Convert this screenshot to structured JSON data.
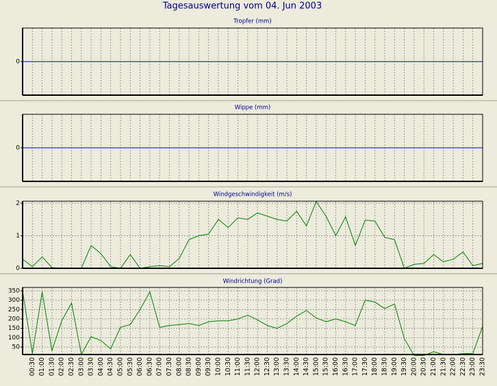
{
  "title": "Tagesauswertung vom 04. Jun 2003",
  "chart_data": [
    {
      "type": "line",
      "title": "Tropfer (mm)",
      "color": "#0000c0",
      "values": [
        0,
        0,
        0,
        0,
        0,
        0,
        0,
        0,
        0,
        0,
        0,
        0,
        0,
        0,
        0,
        0,
        0,
        0,
        0,
        0,
        0,
        0,
        0,
        0,
        0,
        0,
        0,
        0,
        0,
        0,
        0,
        0,
        0,
        0,
        0,
        0,
        0,
        0,
        0,
        0,
        0,
        0,
        0,
        0,
        0,
        0,
        0,
        0
      ],
      "ylim": [
        -1,
        1
      ],
      "yticks": [
        0
      ],
      "grid": true
    },
    {
      "type": "line",
      "title": "Wippe (mm)",
      "color": "#0000c0",
      "values": [
        0,
        0,
        0,
        0,
        0,
        0,
        0,
        0,
        0,
        0,
        0,
        0,
        0,
        0,
        0,
        0,
        0,
        0,
        0,
        0,
        0,
        0,
        0,
        0,
        0,
        0,
        0,
        0,
        0,
        0,
        0,
        0,
        0,
        0,
        0,
        0,
        0,
        0,
        0,
        0,
        0,
        0,
        0,
        0,
        0,
        0,
        0,
        0
      ],
      "ylim": [
        -1,
        1
      ],
      "yticks": [
        0
      ],
      "grid": true
    },
    {
      "type": "line",
      "title": "Windgeschwindigkeit (m/s)",
      "color": "#008000",
      "values": [
        0.28,
        0.05,
        0.35,
        0.02,
        0,
        0,
        0,
        0.7,
        0.45,
        0.05,
        0,
        0.42,
        0,
        0.05,
        0.08,
        0.05,
        0.3,
        0.88,
        1.0,
        1.05,
        1.5,
        1.25,
        1.55,
        1.5,
        1.7,
        1.6,
        1.5,
        1.45,
        1.75,
        1.3,
        2.05,
        1.6,
        1.0,
        1.58,
        0.7,
        1.48,
        1.45,
        0.95,
        0.88,
        0,
        0.12,
        0.15,
        0.42,
        0.2,
        0.28,
        0.5,
        0.08,
        0.15
      ],
      "ylim": [
        0,
        2.06
      ],
      "yticks": [
        0,
        1,
        2
      ],
      "grid": true
    },
    {
      "type": "line",
      "title": "Windrichtung (Grad)",
      "color": "#008000",
      "categories": [
        null,
        "00:30",
        "01:00",
        "01:30",
        "02:00",
        "02:30",
        "03:00",
        "03:30",
        "04:00",
        "04:30",
        "05:00",
        "05:30",
        "06:00",
        "06:30",
        "07:00",
        "07:30",
        "08:00",
        "08:30",
        "09:00",
        "09:30",
        "10:00",
        "10:30",
        "11:00",
        "11:30",
        "12:00",
        "12:30",
        "13:00",
        "13:30",
        "14:00",
        "14:30",
        "15:00",
        "15:30",
        "16:00",
        "16:30",
        "17:00",
        "17:30",
        "18:00",
        "18:30",
        "19:00",
        "19:30",
        "20:00",
        "20:30",
        "21:00",
        "21:30",
        "22:00",
        "22:30",
        "23:00",
        "23:30"
      ],
      "values": [
        350,
        15,
        345,
        30,
        190,
        285,
        10,
        105,
        85,
        40,
        155,
        170,
        250,
        345,
        155,
        165,
        170,
        175,
        165,
        185,
        190,
        190,
        200,
        220,
        195,
        165,
        150,
        175,
        215,
        245,
        205,
        185,
        200,
        185,
        165,
        300,
        290,
        255,
        280,
        95,
        5,
        5,
        25,
        10,
        10,
        15,
        15,
        160
      ],
      "ylim": [
        10,
        368
      ],
      "yticks": [
        50,
        100,
        150,
        200,
        250,
        300,
        350
      ],
      "grid": true
    }
  ]
}
